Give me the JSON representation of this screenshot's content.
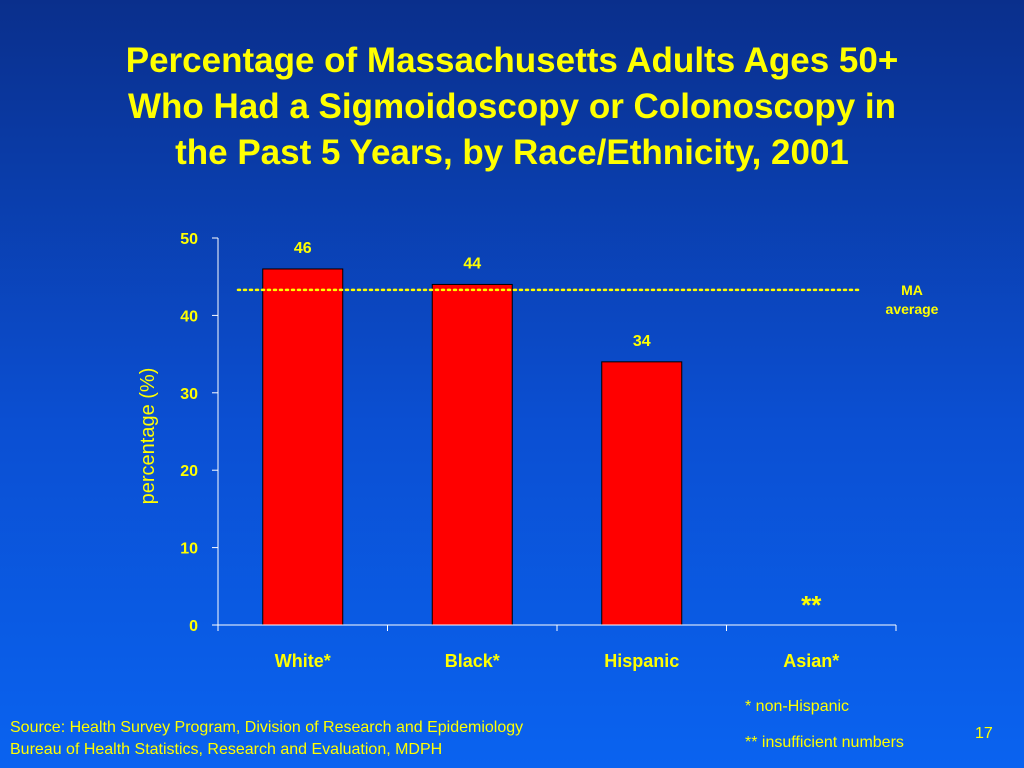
{
  "title": {
    "lines": [
      "Percentage of Massachusetts Adults Ages 50+",
      "Who Had a Sigmoidoscopy or Colonoscopy in",
      "the Past 5 Years, by Race/Ethnicity, 2001"
    ]
  },
  "chart_data": {
    "type": "bar",
    "categories": [
      "White*",
      "Black*",
      "Hispanic",
      "Asian*"
    ],
    "values": [
      46,
      44,
      34,
      null
    ],
    "data_labels": [
      "46",
      "44",
      "34",
      "**"
    ],
    "ylabel": "percentage (%)",
    "xlabel": "",
    "ylim": [
      0,
      50
    ],
    "yticks": [
      0,
      10,
      20,
      30,
      40,
      50
    ],
    "grid": false,
    "bar_color": "#ff0000",
    "reference_line": {
      "value": 43.3,
      "label_lines": [
        "MA",
        "average"
      ],
      "style": "dotted",
      "color": "#ffff00"
    }
  },
  "footnotes": [
    "* non-Hispanic",
    "** insufficient numbers"
  ],
  "source": [
    "Source: Health Survey Program, Division of Research and Epidemiology",
    "Bureau of Health Statistics, Research and Evaluation, MDPH"
  ],
  "page_number": "17",
  "colors": {
    "text": "#ffff00",
    "bar": "#ff0000",
    "axis": "#ffffff"
  }
}
